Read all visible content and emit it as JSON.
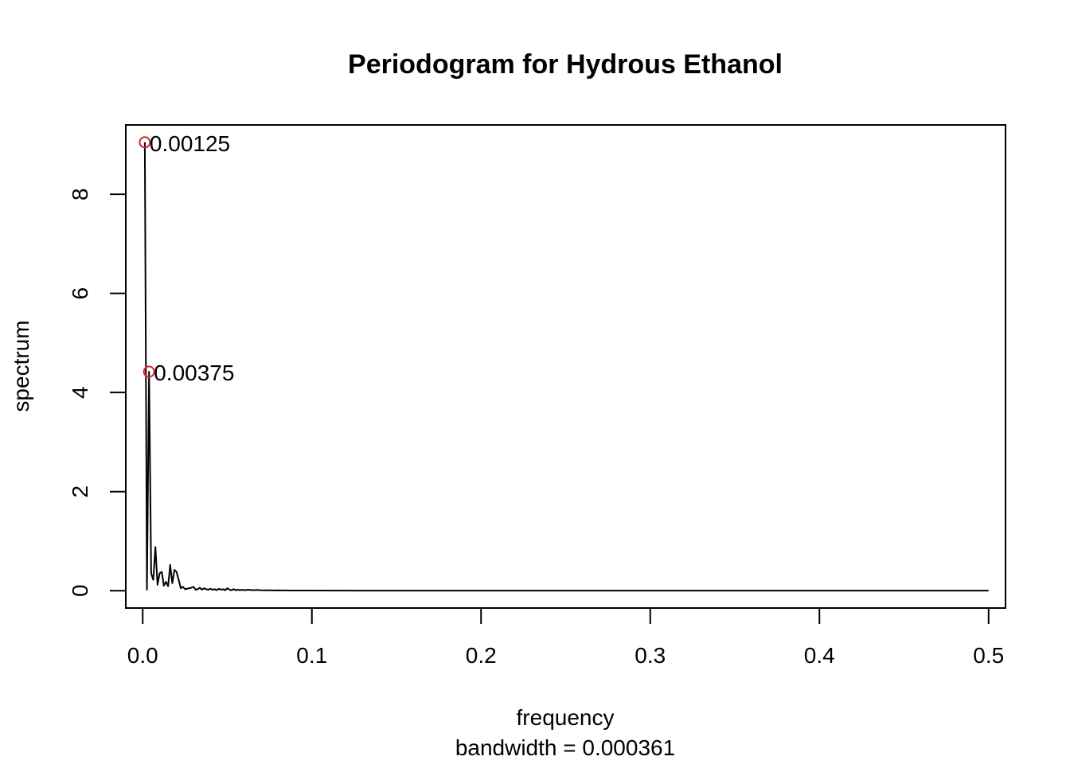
{
  "chart_data": {
    "type": "line",
    "title": "Periodogram for Hydrous Ethanol",
    "xlabel": "frequency",
    "sublabel": "bandwidth = 0.000361",
    "ylabel": "spectrum",
    "xlim": [
      -0.01,
      0.51
    ],
    "ylim": [
      -0.35,
      9.4
    ],
    "x_ticks": [
      0.0,
      0.1,
      0.2,
      0.3,
      0.4,
      0.5
    ],
    "x_tick_labels": [
      "0.0",
      "0.1",
      "0.2",
      "0.3",
      "0.4",
      "0.5"
    ],
    "y_ticks": [
      0,
      2,
      4,
      6,
      8
    ],
    "y_tick_labels": [
      "0",
      "2",
      "4",
      "6",
      "8"
    ],
    "grid": false,
    "series": [
      {
        "line_color": "#000000",
        "x": [
          0.00125,
          0.0025,
          0.00375,
          0.005,
          0.00625,
          0.0075,
          0.00875,
          0.01,
          0.01125,
          0.0125,
          0.01375,
          0.015,
          0.01625,
          0.0175,
          0.01875,
          0.02,
          0.02125,
          0.0225,
          0.02375,
          0.025,
          0.02625,
          0.0275,
          0.02875,
          0.03,
          0.03125,
          0.0325,
          0.03375,
          0.035,
          0.03625,
          0.0375,
          0.03875,
          0.04,
          0.04125,
          0.0425,
          0.04375,
          0.045,
          0.04625,
          0.0475,
          0.04875,
          0.05,
          0.05125,
          0.0525,
          0.05375,
          0.055,
          0.05625,
          0.0575,
          0.05875,
          0.06,
          0.0625,
          0.065,
          0.0675,
          0.07,
          0.0725,
          0.075,
          0.0775,
          0.08,
          0.0825,
          0.085,
          0.0875,
          0.09,
          0.1,
          0.125,
          0.15,
          0.2,
          0.25,
          0.3,
          0.35,
          0.4,
          0.45,
          0.5
        ],
        "y": [
          9.05,
          0.02,
          4.42,
          0.35,
          0.22,
          0.88,
          0.12,
          0.35,
          0.38,
          0.1,
          0.18,
          0.09,
          0.52,
          0.15,
          0.42,
          0.38,
          0.22,
          0.05,
          0.08,
          0.03,
          0.04,
          0.05,
          0.06,
          0.08,
          0.02,
          0.03,
          0.06,
          0.02,
          0.05,
          0.03,
          0.02,
          0.04,
          0.02,
          0.03,
          0.01,
          0.04,
          0.02,
          0.03,
          0.01,
          0.05,
          0.02,
          0.01,
          0.03,
          0.01,
          0.02,
          0.01,
          0.02,
          0.01,
          0.02,
          0.01,
          0.015,
          0.01,
          0.008,
          0.01,
          0.006,
          0.008,
          0.005,
          0.006,
          0.004,
          0.004,
          0.003,
          0.002,
          0.002,
          0.001,
          0.001,
          0.001,
          0.001,
          0.001,
          0.001,
          0.001
        ]
      }
    ],
    "peaks": [
      {
        "x": 0.00125,
        "y": 9.05,
        "label": "0.00125",
        "color": "#d6242e"
      },
      {
        "x": 0.00375,
        "y": 4.42,
        "label": "0.00375",
        "color": "#d6242e"
      }
    ]
  }
}
